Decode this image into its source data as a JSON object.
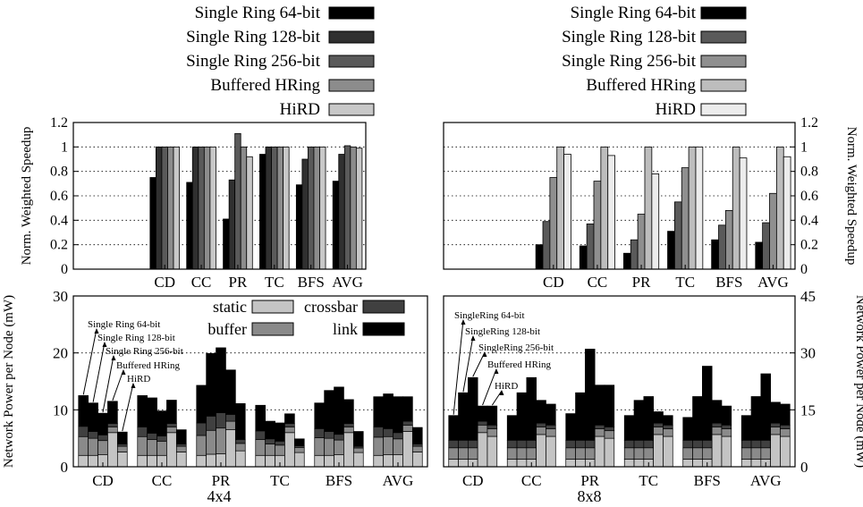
{
  "panel_labels": [
    "4x4",
    "8x8"
  ],
  "chart_data": [
    {
      "type": "bar",
      "panel": "4x4",
      "ylabel": "Norm. Weighted Speedup",
      "ylim": [
        0,
        1.2
      ],
      "yticks": [
        "0",
        "0.2",
        "0.4",
        "0.6",
        "0.8",
        "1",
        "1.2"
      ],
      "grid": true,
      "legend_position": "above",
      "categories": [
        "CD",
        "CC",
        "PR",
        "TC",
        "BFS",
        "AVG"
      ],
      "colors": [
        "#000000",
        "#303030",
        "#5a5a5a",
        "#8c8c8c",
        "#c8c8c8"
      ],
      "series": [
        {
          "name": "Single Ring 64-bit",
          "values": [
            0.75,
            0.71,
            0.41,
            0.94,
            0.69,
            0.72
          ]
        },
        {
          "name": "Single Ring 128-bit",
          "values": [
            1.0,
            1.0,
            0.73,
            1.0,
            0.9,
            0.94
          ]
        },
        {
          "name": "Single Ring 256-bit",
          "values": [
            1.0,
            1.0,
            1.11,
            1.0,
            1.0,
            1.01
          ]
        },
        {
          "name": "Buffered HRing",
          "values": [
            1.0,
            1.0,
            1.0,
            1.0,
            1.0,
            1.0
          ]
        },
        {
          "name": "HiRD",
          "values": [
            1.0,
            1.0,
            0.92,
            1.0,
            1.0,
            0.99
          ]
        }
      ]
    },
    {
      "type": "bar",
      "panel": "8x8",
      "ylabel": "Norm. Weighted Speedup",
      "ylim": [
        0,
        1.2
      ],
      "yticks": [
        "0",
        "0.2",
        "0.4",
        "0.6",
        "0.8",
        "1",
        "1.2"
      ],
      "grid": true,
      "legend_position": "above",
      "categories": [
        "CD",
        "CC",
        "PR",
        "TC",
        "BFS",
        "AVG"
      ],
      "colors": [
        "#000000",
        "#5a5a5a",
        "#8f8f8f",
        "#bdbdbd",
        "#ececec"
      ],
      "series": [
        {
          "name": "Single Ring 64-bit",
          "values": [
            0.2,
            0.19,
            0.13,
            0.31,
            0.24,
            0.22
          ]
        },
        {
          "name": "Single Ring 128-bit",
          "values": [
            0.39,
            0.37,
            0.24,
            0.55,
            0.36,
            0.38
          ]
        },
        {
          "name": "Single Ring 256-bit",
          "values": [
            0.75,
            0.72,
            0.45,
            0.83,
            0.48,
            0.62
          ]
        },
        {
          "name": "Buffered HRing",
          "values": [
            1.0,
            1.0,
            1.0,
            1.0,
            1.0,
            1.0
          ]
        },
        {
          "name": "HiRD",
          "values": [
            0.94,
            0.93,
            0.78,
            1.0,
            0.91,
            0.92
          ]
        }
      ]
    },
    {
      "type": "bar",
      "stacked": true,
      "panel": "4x4",
      "ylabel": "Network Power per Node (mW)",
      "ylim": [
        0,
        30
      ],
      "yticks": [
        "0",
        "10",
        "20",
        "30"
      ],
      "grid": true,
      "legend_position": "top-center",
      "categories": [
        "CD",
        "CC",
        "PR",
        "TC",
        "BFS",
        "AVG"
      ],
      "bar_labels": [
        "Single Ring 64-bit",
        "Single Ring 128-bit",
        "Single Ring 256-bit",
        "Buffered HRing",
        "HiRD"
      ],
      "components": [
        {
          "name": "static",
          "color": "#c4c4c4"
        },
        {
          "name": "buffer",
          "color": "#8a8a8a"
        },
        {
          "name": "crossbar",
          "color": "#404040"
        },
        {
          "name": "link",
          "color": "#000000"
        }
      ],
      "values": [
        [
          [
            2.0,
            3.3,
            1.8,
            5.4
          ],
          [
            2.0,
            3.0,
            1.2,
            5.0
          ],
          [
            2.1,
            2.5,
            1.0,
            3.8
          ],
          [
            6.0,
            1.0,
            0.6,
            3.9
          ],
          [
            2.6,
            1.0,
            0.4,
            2.1
          ]
        ],
        [
          [
            2.0,
            3.3,
            1.7,
            5.5
          ],
          [
            2.0,
            2.8,
            1.1,
            6.2
          ],
          [
            2.0,
            2.5,
            0.9,
            4.4
          ],
          [
            6.0,
            1.0,
            0.6,
            4.1
          ],
          [
            2.6,
            1.0,
            0.4,
            2.5
          ]
        ],
        [
          [
            2.0,
            3.5,
            2.2,
            6.6
          ],
          [
            2.2,
            4.2,
            2.5,
            11.0
          ],
          [
            2.3,
            4.5,
            2.7,
            11.4
          ],
          [
            6.5,
            1.5,
            1.2,
            7.8
          ],
          [
            2.8,
            1.3,
            0.7,
            6.3
          ]
        ],
        [
          [
            2.0,
            2.8,
            1.5,
            4.5
          ],
          [
            2.0,
            2.0,
            0.9,
            3.1
          ],
          [
            2.0,
            1.8,
            0.7,
            3.2
          ],
          [
            6.0,
            1.0,
            0.6,
            1.7
          ],
          [
            2.5,
            0.9,
            0.3,
            1.2
          ]
        ],
        [
          [
            2.0,
            3.1,
            1.6,
            4.5
          ],
          [
            2.0,
            3.0,
            1.2,
            7.2
          ],
          [
            2.1,
            2.6,
            1.0,
            8.3
          ],
          [
            6.0,
            1.0,
            0.6,
            4.2
          ],
          [
            2.5,
            0.8,
            0.3,
            2.6
          ]
        ],
        [
          [
            2.0,
            3.2,
            1.8,
            5.3
          ],
          [
            2.1,
            3.2,
            1.4,
            6.1
          ],
          [
            2.1,
            2.8,
            1.1,
            6.3
          ],
          [
            6.2,
            1.1,
            0.7,
            4.3
          ],
          [
            2.6,
            1.0,
            0.4,
            2.9
          ]
        ]
      ]
    },
    {
      "type": "bar",
      "stacked": true,
      "panel": "8x8",
      "ylabel": "Network Power per Node (mW)",
      "ylim": [
        0,
        45
      ],
      "yticks": [
        "0",
        "15",
        "30",
        "45"
      ],
      "grid": true,
      "categories": [
        "CD",
        "CC",
        "PR",
        "TC",
        "BFS",
        "AVG"
      ],
      "bar_labels": [
        "SingleRing 64-bit",
        "SingleRing 128-bit",
        "SingleRing 256-bit",
        "Buffered HRing",
        "HiRD"
      ],
      "components": [
        {
          "name": "static",
          "color": "#c4c4c4"
        },
        {
          "name": "buffer",
          "color": "#8a8a8a"
        },
        {
          "name": "crossbar",
          "color": "#404040"
        },
        {
          "name": "link",
          "color": "#000000"
        }
      ],
      "values": [
        [
          [
            2.0,
            3.0,
            2.0,
            6.5
          ],
          [
            2.0,
            3.0,
            2.0,
            12.5
          ],
          [
            2.0,
            3.0,
            2.0,
            16.5
          ],
          [
            9.0,
            2.0,
            1.0,
            4.0
          ],
          [
            8.0,
            2.0,
            1.0,
            5.0
          ]
        ],
        [
          [
            2.0,
            3.0,
            2.0,
            6.5
          ],
          [
            2.0,
            3.0,
            2.0,
            12.5
          ],
          [
            2.0,
            3.0,
            2.0,
            16.5
          ],
          [
            8.5,
            2.0,
            1.0,
            6.0
          ],
          [
            8.0,
            2.0,
            1.0,
            5.5
          ]
        ],
        [
          [
            2.0,
            3.0,
            2.0,
            7.0
          ],
          [
            2.0,
            3.0,
            2.0,
            12.5
          ],
          [
            2.0,
            3.0,
            2.0,
            24.0
          ],
          [
            8.0,
            2.0,
            1.0,
            10.5
          ],
          [
            7.5,
            2.0,
            1.0,
            11.0
          ]
        ],
        [
          [
            2.0,
            3.0,
            2.0,
            6.5
          ],
          [
            2.0,
            3.0,
            2.0,
            10.5
          ],
          [
            2.0,
            3.0,
            2.0,
            11.5
          ],
          [
            8.5,
            2.0,
            1.0,
            3.0
          ],
          [
            8.0,
            2.0,
            1.0,
            2.5
          ]
        ],
        [
          [
            2.0,
            3.0,
            2.0,
            6.0
          ],
          [
            2.0,
            3.0,
            2.0,
            11.5
          ],
          [
            2.0,
            3.0,
            2.0,
            19.5
          ],
          [
            8.5,
            2.0,
            1.0,
            6.0
          ],
          [
            8.0,
            2.0,
            1.0,
            5.0
          ]
        ],
        [
          [
            2.0,
            3.0,
            2.0,
            6.5
          ],
          [
            2.0,
            3.0,
            2.0,
            11.5
          ],
          [
            2.0,
            3.0,
            2.0,
            17.5
          ],
          [
            8.5,
            2.0,
            1.0,
            5.5
          ],
          [
            8.0,
            2.0,
            1.0,
            5.5
          ]
        ]
      ]
    }
  ]
}
